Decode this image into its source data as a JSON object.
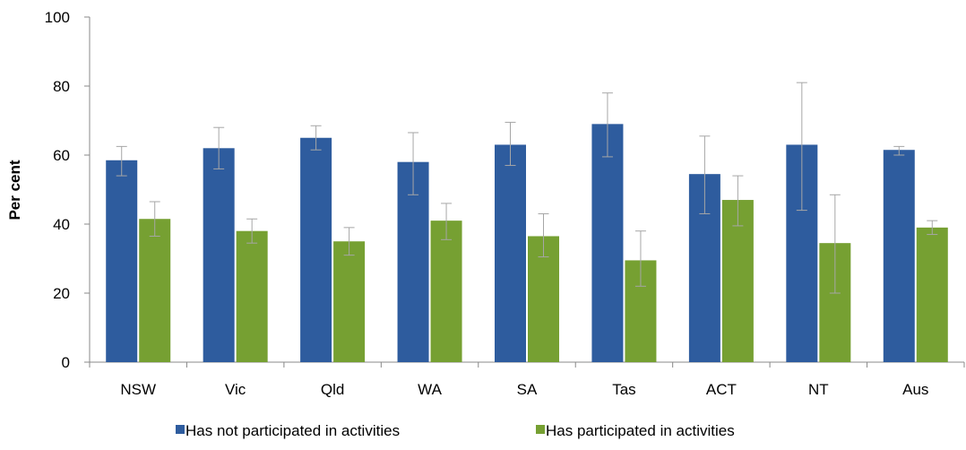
{
  "chart_data": {
    "type": "bar",
    "title": "",
    "xlabel": "",
    "ylabel": "Per cent",
    "ylim": [
      0,
      100
    ],
    "yticks": [
      0,
      20,
      40,
      60,
      80,
      100
    ],
    "grid": false,
    "legend_position": "bottom",
    "categories": [
      "NSW",
      "Vic",
      "Qld",
      "WA",
      "SA",
      "Tas",
      "ACT",
      "NT",
      "Aus"
    ],
    "series": [
      {
        "name": "Has not participated in activities",
        "color": "#2E5C9E",
        "values": [
          58.5,
          62,
          65,
          58,
          63,
          69,
          54.5,
          63,
          61.5
        ],
        "error_low": [
          54,
          56,
          61.5,
          48.5,
          57,
          59.5,
          43,
          44,
          60
        ],
        "error_high": [
          62.5,
          68,
          68.5,
          66.5,
          69.5,
          78,
          65.5,
          81,
          62.5
        ]
      },
      {
        "name": "Has participated in activities",
        "color": "#76A032",
        "values": [
          41.5,
          38,
          35,
          41,
          36.5,
          29.5,
          47,
          34.5,
          39
        ],
        "error_low": [
          36.5,
          34.5,
          31,
          35.5,
          30.5,
          22,
          39.5,
          20,
          37
        ],
        "error_high": [
          46.5,
          41.5,
          39,
          46,
          43,
          38,
          54,
          48.5,
          41
        ]
      }
    ]
  }
}
